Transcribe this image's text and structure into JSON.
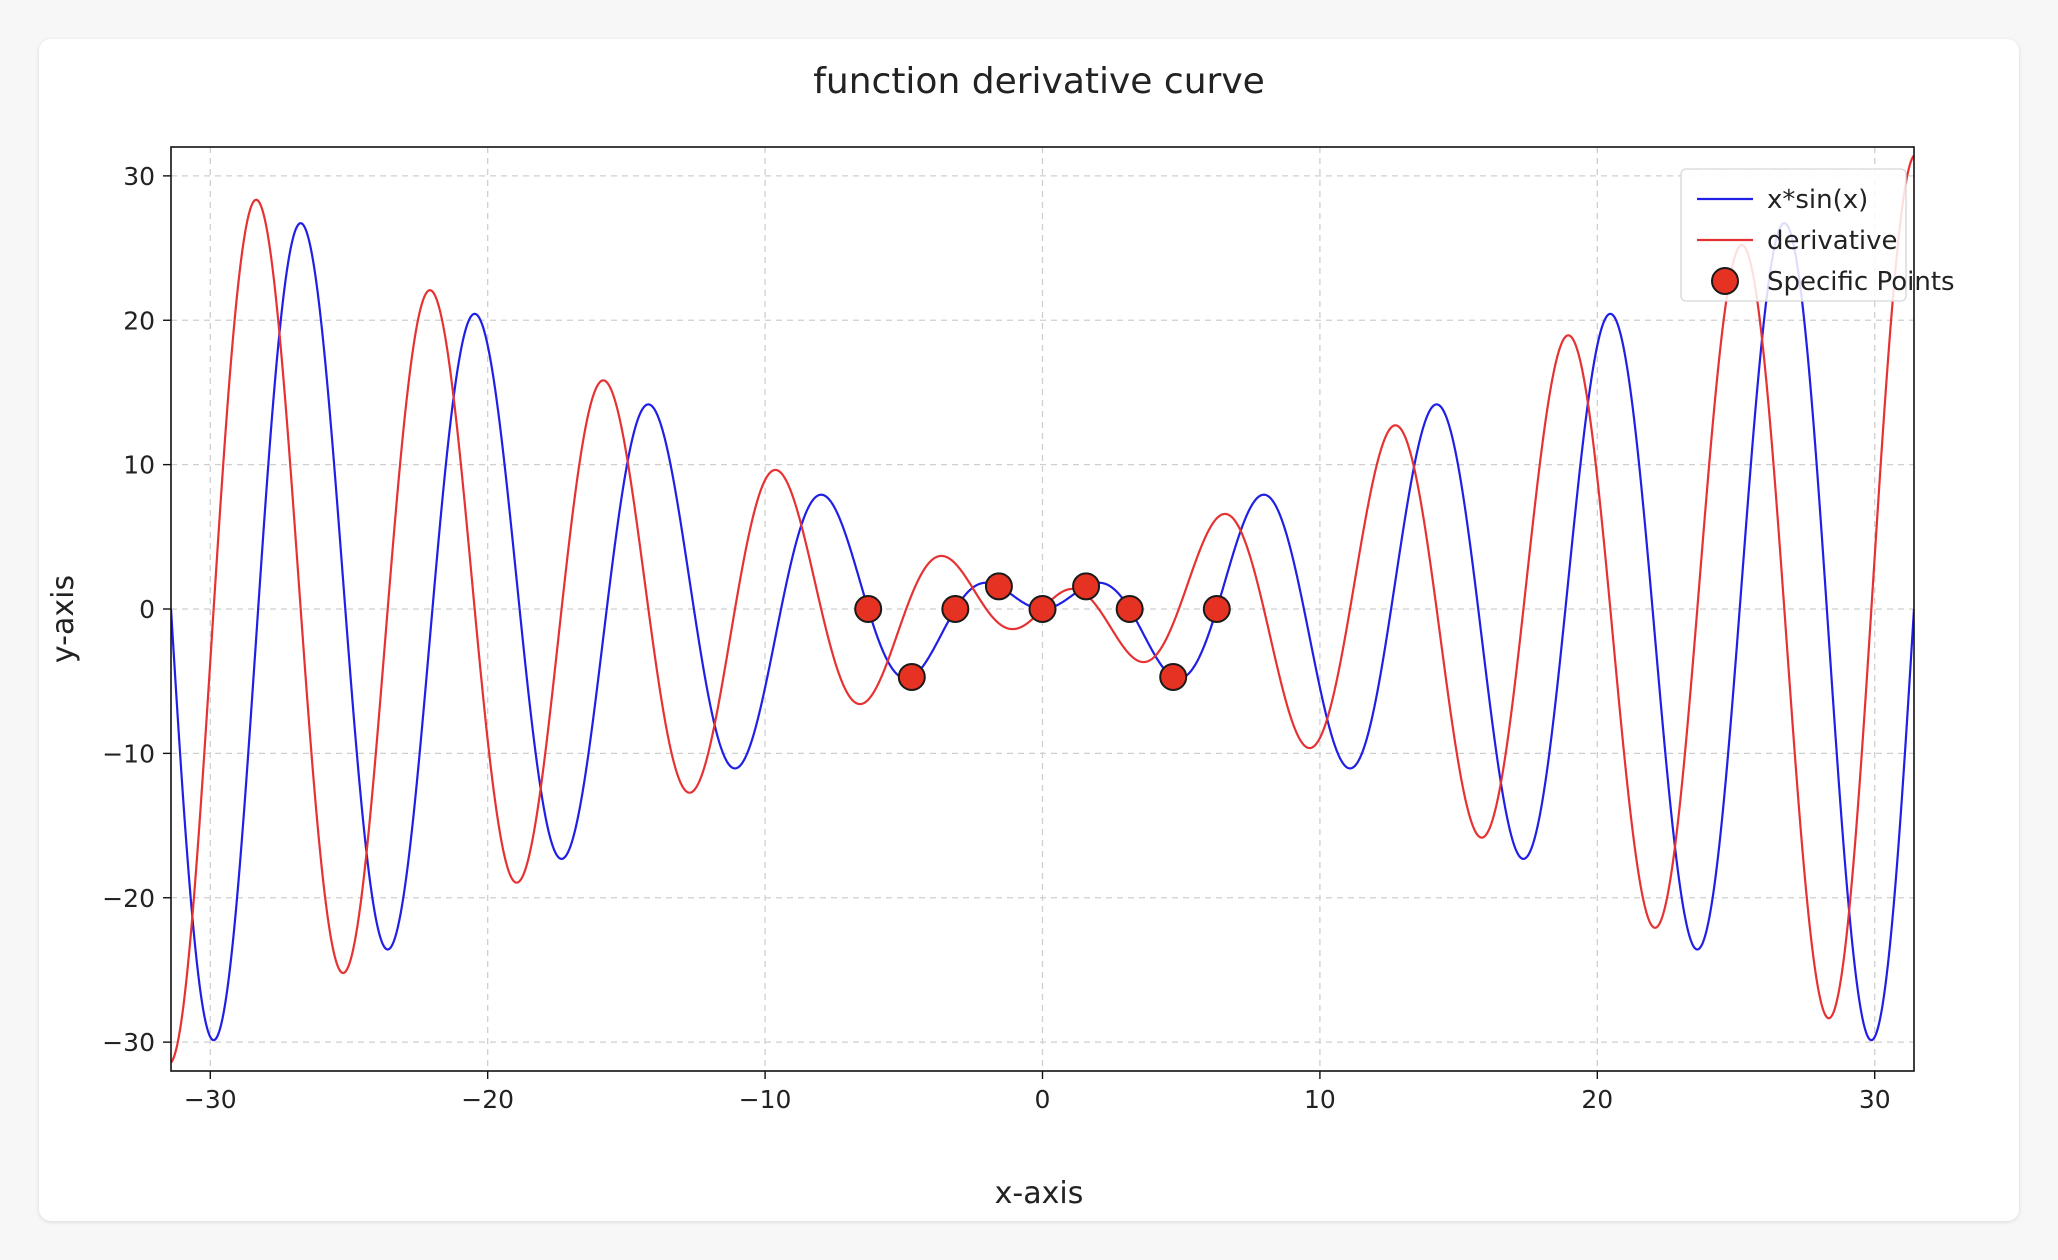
{
  "chart_data": {
    "type": "line",
    "title": "function derivative curve",
    "xlabel": "x-axis",
    "ylabel": "y-axis",
    "xlim": [
      -31.4159,
      31.4159
    ],
    "ylim": [
      -32,
      32
    ],
    "xticks": [
      -30,
      -20,
      -10,
      0,
      10,
      20,
      30
    ],
    "yticks": [
      -30,
      -20,
      -10,
      0,
      10,
      20,
      30
    ],
    "xtick_labels": [
      "−30",
      "−20",
      "−10",
      "0",
      "10",
      "20",
      "30"
    ],
    "ytick_labels": [
      "−30",
      "−20",
      "−10",
      "0",
      "10",
      "20",
      "30"
    ],
    "grid": true,
    "legend_position": "top-right",
    "series": [
      {
        "name": "x*sin(x)",
        "kind": "line",
        "color": "#1f1fe6",
        "function": "x*sin(x)"
      },
      {
        "name": "derivative",
        "kind": "line",
        "color": "#e63232",
        "function": "sin(x)+x*cos(x)"
      },
      {
        "name": "Specific Points",
        "kind": "scatter",
        "color": "#e63222",
        "edge_color": "#1a1a1a",
        "points": [
          {
            "x": -6.283,
            "y": 0.0
          },
          {
            "x": -4.712,
            "y": -4.712
          },
          {
            "x": -3.142,
            "y": 0.0
          },
          {
            "x": -1.571,
            "y": 1.571
          },
          {
            "x": 0.0,
            "y": 0.0
          },
          {
            "x": 1.571,
            "y": 1.571
          },
          {
            "x": 3.142,
            "y": 0.0
          },
          {
            "x": 4.712,
            "y": -4.712
          },
          {
            "x": 6.283,
            "y": 0.0
          }
        ]
      }
    ]
  }
}
